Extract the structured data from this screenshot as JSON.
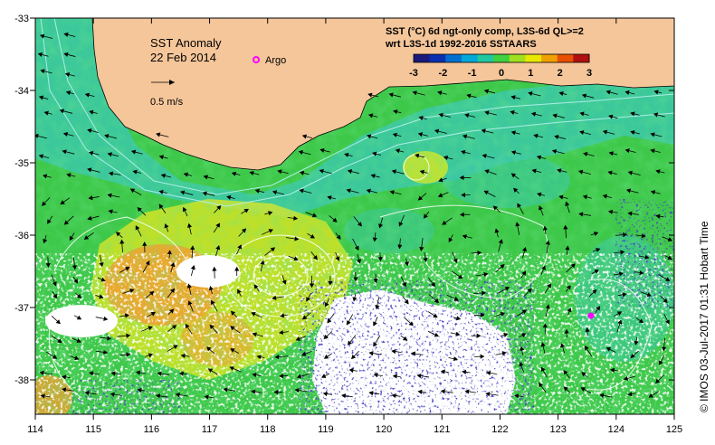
{
  "map": {
    "title": "SST Anomaly",
    "date": "22 Feb 2014",
    "argo_label": "Argo",
    "scale_label": "0.5 m/s",
    "colorbar": {
      "line1": "SST (°C) 6d ngt-only comp, L3S-6d QL>=2",
      "line2": "wrt L3S-1d 1992-2016 SSTAARS",
      "ticks": [
        "-3",
        "-2",
        "-1",
        "0",
        "1",
        "2",
        "3"
      ],
      "colors": [
        "#1a1a7a",
        "#0a2fb0",
        "#0070d0",
        "#00a8d8",
        "#20c8a0",
        "#40d040",
        "#a0e020",
        "#e8e800",
        "#f0a000",
        "#e85000",
        "#b01010"
      ]
    },
    "x_ticks": [
      "114",
      "115",
      "116",
      "117",
      "118",
      "119",
      "120",
      "121",
      "122",
      "123",
      "124",
      "125"
    ],
    "y_ticks": [
      "-33",
      "-34",
      "-35",
      "-36",
      "-37",
      "-38"
    ],
    "credit": "© IMOS 03-Jul-2017 01:31 Hobart Time",
    "colors": {
      "land": "#f5c69a",
      "sea_green": "#3ec84a",
      "sea_cyan": "#3cc8a8",
      "sea_yellow": "#e8e820",
      "sea_orange": "#f0a030",
      "missing": "#ffffff",
      "cold_blue": "#10108a",
      "argo": "#ff00ff"
    }
  }
}
